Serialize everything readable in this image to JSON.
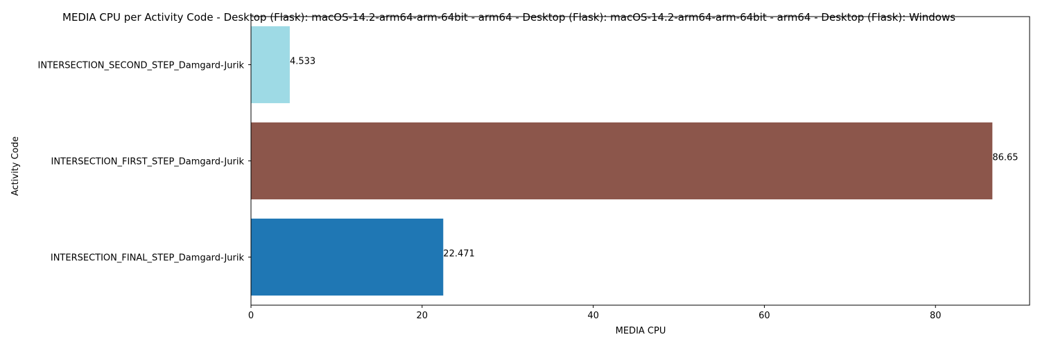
{
  "chart_data": {
    "type": "bar",
    "orientation": "horizontal",
    "title": "MEDIA CPU per Activity Code - Desktop (Flask): macOS-14.2-arm64-arm-64bit - arm64 - Desktop (Flask): macOS-14.2-arm64-arm-64bit - arm64 - Desktop (Flask): Windows",
    "xlabel": "MEDIA CPU",
    "ylabel": "Activity Code",
    "xlim": [
      0,
      91
    ],
    "x_ticks": [
      0,
      20,
      40,
      60,
      80
    ],
    "grid": false,
    "categories": [
      "INTERSECTION_SECOND_STEP_Damgard-Jurik",
      "INTERSECTION_FIRST_STEP_Damgard-Jurik",
      "INTERSECTION_FINAL_STEP_Damgard-Jurik"
    ],
    "values": [
      4.533,
      86.65,
      22.471
    ],
    "value_labels": [
      "4.533",
      "86.65",
      "22.471"
    ],
    "colors": [
      "#9edae5",
      "#8c564b",
      "#1f77b4"
    ]
  }
}
